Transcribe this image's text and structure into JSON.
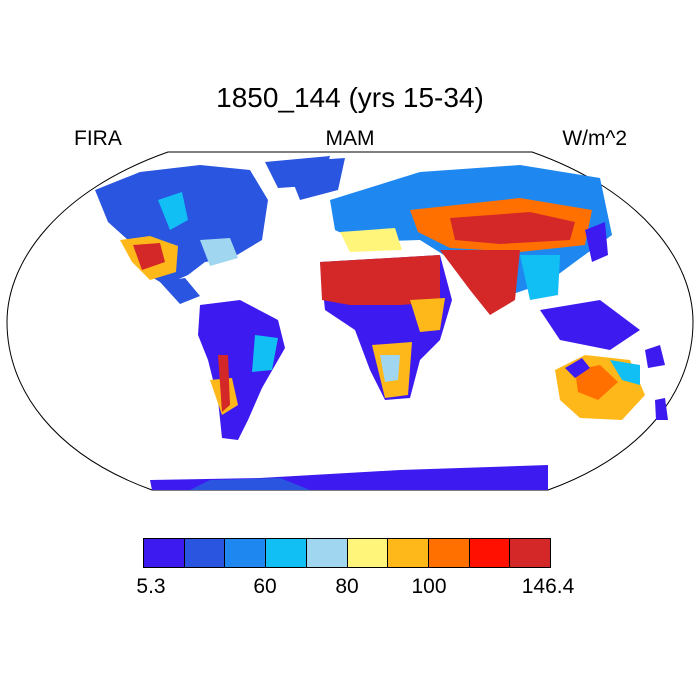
{
  "title": "1850_144 (yrs 15-34)",
  "left_label": "FIRA",
  "center_label": "MAM",
  "right_label": "W/m^2",
  "colorbar": {
    "colors": [
      "#3d1af0",
      "#2a55e0",
      "#1e88f0",
      "#12bff5",
      "#a0d6f0",
      "#fff57a",
      "#ffb81a",
      "#ff7000",
      "#ff1000",
      "#d42828"
    ],
    "tick_labels": [
      "5.3",
      "60",
      "80",
      "100",
      "146.4"
    ]
  }
}
